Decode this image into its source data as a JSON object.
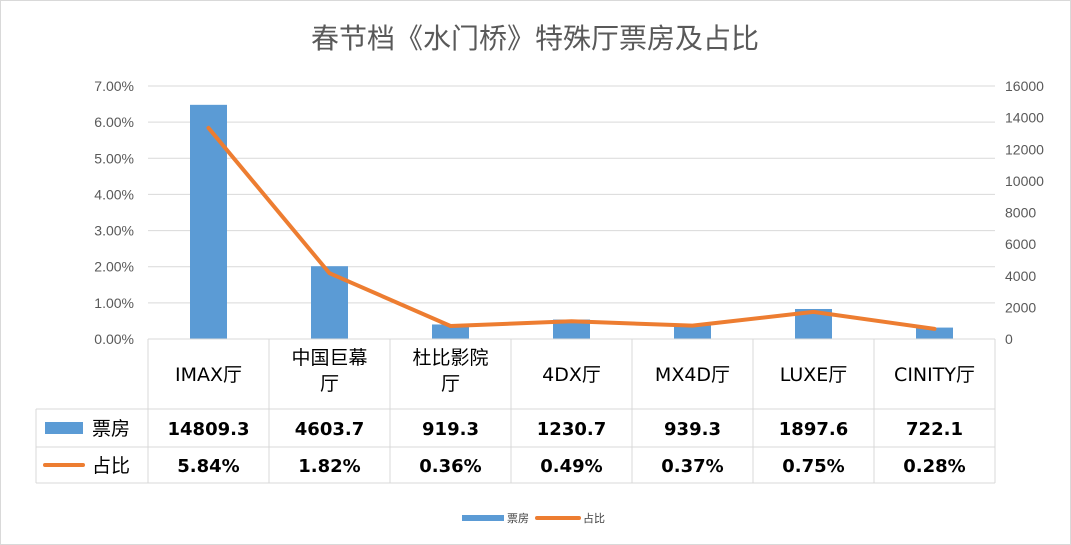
{
  "chart_data": {
    "type": "bar",
    "title": "春节档《水门桥》特殊厅票房及占比",
    "categories": [
      "IMAX厅",
      "中国巨幕厅",
      "杜比影院厅",
      "4DX厅",
      "MX4D厅",
      "LUXE厅",
      "CINITY厅"
    ],
    "series": [
      {
        "name": "票房",
        "kind": "bar",
        "axis": "right",
        "color": "#5B9BD5",
        "values": [
          14809.3,
          4603.7,
          919.3,
          1230.7,
          939.3,
          1897.6,
          722.1
        ],
        "labels": [
          "14809.3",
          "4603.7",
          "919.3",
          "1230.7",
          "939.3",
          "1897.6",
          "722.1"
        ]
      },
      {
        "name": "占比",
        "kind": "line",
        "axis": "left",
        "color": "#ED7D31",
        "values": [
          5.84,
          1.82,
          0.36,
          0.49,
          0.37,
          0.75,
          0.28
        ],
        "labels": [
          "5.84%",
          "1.82%",
          "0.36%",
          "0.49%",
          "0.37%",
          "0.75%",
          "0.28%"
        ]
      }
    ],
    "y_left": {
      "min": 0,
      "max": 7,
      "ticks": [
        0,
        1,
        2,
        3,
        4,
        5,
        6,
        7
      ],
      "tick_labels": [
        "0.00%",
        "1.00%",
        "2.00%",
        "3.00%",
        "4.00%",
        "5.00%",
        "6.00%",
        "7.00%"
      ]
    },
    "y_right": {
      "min": 0,
      "max": 16000,
      "ticks": [
        0,
        2000,
        4000,
        6000,
        8000,
        10000,
        12000,
        14000,
        16000
      ],
      "tick_labels": [
        "0",
        "2000",
        "4000",
        "6000",
        "8000",
        "10000",
        "12000",
        "14000",
        "16000"
      ]
    },
    "grid": true,
    "data_table": true,
    "legend_position": "bottom"
  }
}
